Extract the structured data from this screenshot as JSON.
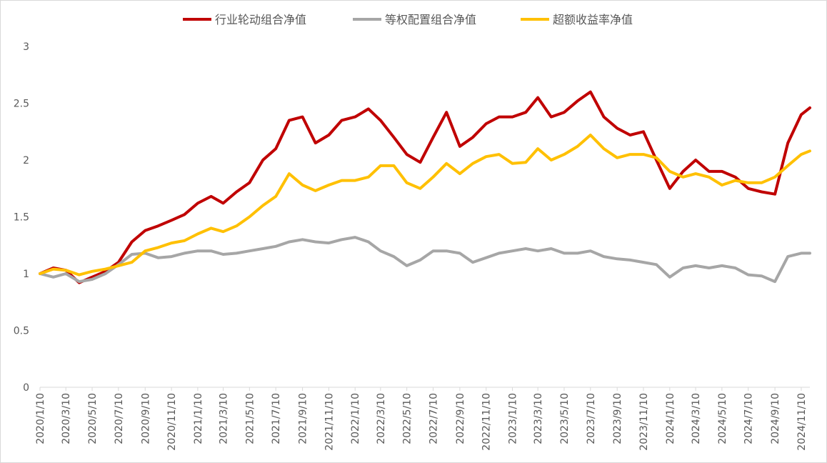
{
  "chart_data": {
    "type": "line",
    "title": "",
    "xlabel": "",
    "ylabel": "",
    "ylim": [
      0,
      3
    ],
    "yticks": [
      "0",
      "0.5",
      "1",
      "1.5",
      "2",
      "2.5",
      "3"
    ],
    "grid": false,
    "legend_position": "top",
    "x_tick_labels": [
      "2020/1/10",
      "2020/3/10",
      "2020/5/10",
      "2020/7/10",
      "2020/9/10",
      "2020/11/10",
      "2021/1/10",
      "2021/3/10",
      "2021/5/10",
      "2021/7/10",
      "2021/9/10",
      "2021/11/10",
      "2022/1/10",
      "2022/3/10",
      "2022/5/10",
      "2022/7/10",
      "2022/9/10",
      "2022/11/10",
      "2023/1/10",
      "2023/3/10",
      "2023/5/10",
      "2023/7/10",
      "2023/9/10",
      "2023/11/10",
      "2024/1/10",
      "2024/3/10",
      "2024/5/10",
      "2024/7/10",
      "2024/9/10",
      "2024/11/10"
    ],
    "x": [
      "2020/1/10",
      "2020/2/10",
      "2020/3/10",
      "2020/4/10",
      "2020/5/10",
      "2020/6/10",
      "2020/7/10",
      "2020/8/10",
      "2020/9/10",
      "2020/10/10",
      "2020/11/10",
      "2020/12/10",
      "2021/1/10",
      "2021/2/10",
      "2021/3/10",
      "2021/4/10",
      "2021/5/10",
      "2021/6/10",
      "2021/7/10",
      "2021/8/10",
      "2021/9/10",
      "2021/10/10",
      "2021/11/10",
      "2021/12/10",
      "2022/1/10",
      "2022/2/10",
      "2022/3/10",
      "2022/4/10",
      "2022/5/10",
      "2022/6/10",
      "2022/7/10",
      "2022/8/10",
      "2022/9/10",
      "2022/10/10",
      "2022/11/10",
      "2022/12/10",
      "2023/1/10",
      "2023/2/10",
      "2023/3/10",
      "2023/4/10",
      "2023/5/10",
      "2023/6/10",
      "2023/7/10",
      "2023/8/10",
      "2023/9/10",
      "2023/10/10",
      "2023/11/10",
      "2023/12/10",
      "2024/1/10",
      "2024/2/10",
      "2024/3/10",
      "2024/4/10",
      "2024/5/10",
      "2024/6/10",
      "2024/7/10",
      "2024/8/10",
      "2024/9/10",
      "2024/10/10",
      "2024/11/10",
      "2024/11/30"
    ],
    "series": [
      {
        "name": "行业轮动组合净值",
        "color": "#c00000",
        "values": [
          1.0,
          1.05,
          1.03,
          0.92,
          0.97,
          1.02,
          1.1,
          1.28,
          1.38,
          1.42,
          1.47,
          1.52,
          1.62,
          1.68,
          1.62,
          1.72,
          1.8,
          2.0,
          2.1,
          2.35,
          2.38,
          2.15,
          2.22,
          2.35,
          2.38,
          2.45,
          2.35,
          2.2,
          2.05,
          1.98,
          2.2,
          2.42,
          2.12,
          2.2,
          2.32,
          2.38,
          2.38,
          2.42,
          2.55,
          2.38,
          2.42,
          2.52,
          2.6,
          2.38,
          2.28,
          2.22,
          2.25,
          2.0,
          1.75,
          1.9,
          2.0,
          1.9,
          1.9,
          1.85,
          1.75,
          1.72,
          1.7,
          2.15,
          2.4,
          2.46
        ]
      },
      {
        "name": "等权配置组合净值",
        "color": "#a6a6a6",
        "values": [
          1.0,
          0.97,
          1.0,
          0.93,
          0.95,
          1.0,
          1.08,
          1.17,
          1.18,
          1.14,
          1.15,
          1.18,
          1.2,
          1.2,
          1.17,
          1.18,
          1.2,
          1.22,
          1.24,
          1.28,
          1.3,
          1.28,
          1.27,
          1.3,
          1.32,
          1.28,
          1.2,
          1.15,
          1.07,
          1.12,
          1.2,
          1.2,
          1.18,
          1.1,
          1.14,
          1.18,
          1.2,
          1.22,
          1.2,
          1.22,
          1.18,
          1.18,
          1.2,
          1.15,
          1.13,
          1.12,
          1.1,
          1.08,
          0.97,
          1.05,
          1.07,
          1.05,
          1.07,
          1.05,
          0.99,
          0.98,
          0.93,
          1.15,
          1.18,
          1.18
        ]
      },
      {
        "name": "超额收益率净值",
        "color": "#ffc000",
        "values": [
          1.0,
          1.04,
          1.03,
          0.99,
          1.02,
          1.04,
          1.07,
          1.1,
          1.2,
          1.23,
          1.27,
          1.29,
          1.35,
          1.4,
          1.37,
          1.42,
          1.5,
          1.6,
          1.68,
          1.88,
          1.78,
          1.73,
          1.78,
          1.82,
          1.82,
          1.85,
          1.95,
          1.95,
          1.8,
          1.75,
          1.85,
          1.97,
          1.88,
          1.97,
          2.03,
          2.05,
          1.97,
          1.98,
          2.1,
          2.0,
          2.05,
          2.12,
          2.22,
          2.1,
          2.02,
          2.05,
          2.05,
          2.02,
          1.9,
          1.85,
          1.88,
          1.85,
          1.78,
          1.82,
          1.8,
          1.8,
          1.85,
          1.95,
          2.05,
          2.08
        ]
      }
    ]
  }
}
